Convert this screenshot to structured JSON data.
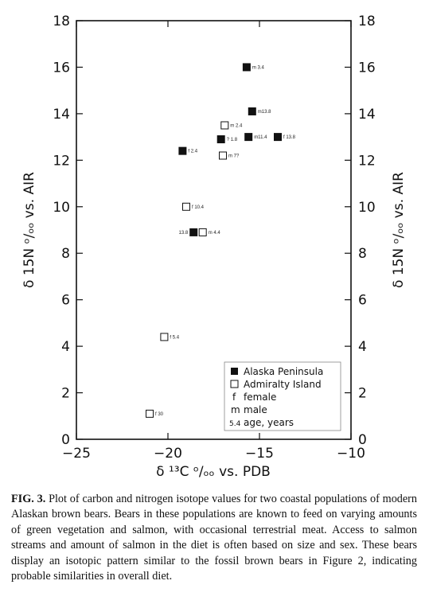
{
  "chart_data": {
    "type": "scatter",
    "xlabel": "δ ¹³C ᵒ/ₒₒ vs. PDB",
    "ylabel": "δ 15N ᵒ/ₒₒ vs. AIR",
    "ylabel_right": "δ 15N ᵒ/ₒₒ vs. AIR",
    "xlim": [
      -25,
      -10
    ],
    "ylim": [
      0,
      18
    ],
    "xticks": [
      -25,
      -20,
      -15,
      -10
    ],
    "xtick_labels": [
      "−25",
      "−20",
      "−15",
      "−10"
    ],
    "yticks": [
      0,
      2,
      4,
      6,
      8,
      10,
      12,
      14,
      16,
      18
    ],
    "ytick_labels": [
      "0",
      "2",
      "4",
      "6",
      "8",
      "10",
      "12",
      "14",
      "16",
      "18"
    ],
    "grid": false,
    "series": [
      {
        "name": "Alaska Peninsula",
        "marker": "filled-square",
        "points": [
          {
            "x": -15.7,
            "y": 16.0,
            "label": "m 3.4"
          },
          {
            "x": -15.4,
            "y": 14.1,
            "label": "m13.8"
          },
          {
            "x": -17.1,
            "y": 12.9,
            "label": "? 1.8"
          },
          {
            "x": -15.6,
            "y": 13.0,
            "label": "m11.4"
          },
          {
            "x": -14.0,
            "y": 13.0,
            "label": "f 13.8"
          },
          {
            "x": -19.2,
            "y": 12.4,
            "label": "f 2.4"
          },
          {
            "x": -18.6,
            "y": 8.9,
            "label": "13.8"
          }
        ]
      },
      {
        "name": "Admiralty Island",
        "marker": "open-square",
        "points": [
          {
            "x": -16.9,
            "y": 13.5,
            "label": "m 2.4"
          },
          {
            "x": -17.0,
            "y": 12.2,
            "label": "m 7?"
          },
          {
            "x": -19.0,
            "y": 10.0,
            "label": "f 10.4"
          },
          {
            "x": -18.1,
            "y": 8.9,
            "label": "m 4.4"
          },
          {
            "x": -20.2,
            "y": 4.4,
            "label": "f 5.4"
          },
          {
            "x": -21.0,
            "y": 1.1,
            "label": "f 30"
          }
        ]
      }
    ],
    "legend": {
      "placement": "bottom-right",
      "entries": [
        {
          "symbol": "filled-square",
          "text": "Alaska Peninsula"
        },
        {
          "symbol": "open-square",
          "text": "Admiralty Island"
        },
        {
          "symbol": "f",
          "text": "female"
        },
        {
          "symbol": "m",
          "text": "male"
        },
        {
          "symbol": "5.4",
          "text": "age, years"
        }
      ]
    }
  },
  "caption": {
    "label": "FIG. 3.",
    "text": "Plot of carbon and nitrogen isotope values for two coastal populations of modern Alaskan brown bears. Bears in these populations are known to feed on varying amounts of green vegetation and salmon, with occasional terrestrial meat. Access to salmon streams and amount of salmon in the diet is often based on size and sex. These bears display an isotopic pattern similar to the fossil brown bears in Figure 2, indicating probable similarities in overall diet."
  }
}
